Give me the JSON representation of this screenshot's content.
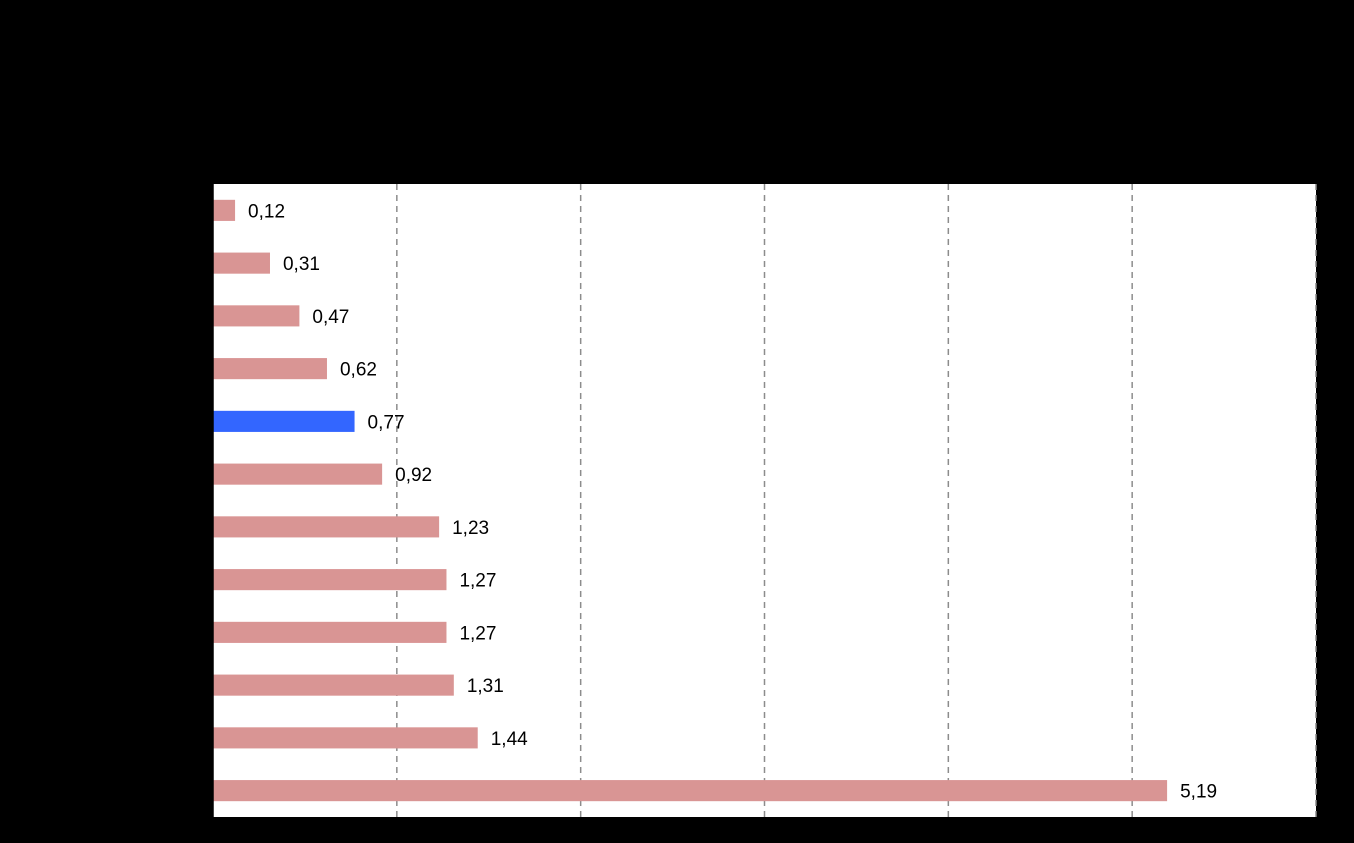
{
  "chart_data": {
    "type": "bar",
    "orientation": "horizontal",
    "values": [
      0.12,
      0.31,
      0.47,
      0.62,
      0.77,
      0.92,
      1.23,
      1.27,
      1.27,
      1.31,
      1.44,
      5.19
    ],
    "value_labels": [
      "0,12",
      "0,31",
      "0,47",
      "0,62",
      "0,77",
      "0,92",
      "1,23",
      "1,27",
      "1,27",
      "1,31",
      "1,44",
      "5,19"
    ],
    "highlight_index": 4,
    "xlim": [
      0,
      6
    ],
    "grid": "vertical dashed",
    "legend": "none",
    "colors": {
      "bar": "#d99594",
      "highlight": "#3366ff",
      "plot_bg": "#ffffff",
      "page_bg": "#000000",
      "grid": "#8c8c8c"
    }
  }
}
